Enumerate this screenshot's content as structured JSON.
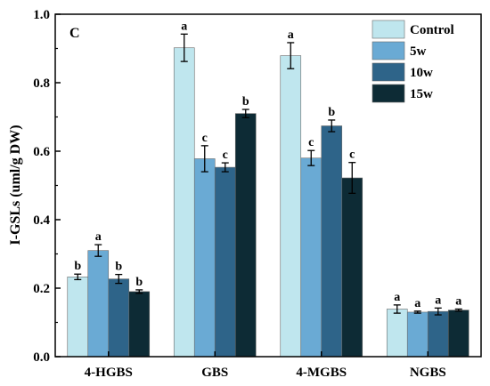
{
  "chart_data": {
    "type": "bar",
    "panel_label": "C",
    "ylabel": "I-GSLs (uml/g DW)",
    "xlabel": "",
    "ylim": [
      0,
      1.0
    ],
    "yticks": [
      "0.0",
      "0.2",
      "0.4",
      "0.6",
      "0.8",
      "1.0"
    ],
    "categories": [
      "4-HGBS",
      "GBS",
      "4-MGBS",
      "NGBS"
    ],
    "legend_position": "top-right",
    "series": [
      {
        "name": "Control",
        "color": "#bfe6ee",
        "values": [
          0.233,
          0.902,
          0.879,
          0.139
        ],
        "errors": [
          0.008,
          0.04,
          0.038,
          0.012
        ],
        "letters": [
          "b",
          "a",
          "a",
          "a"
        ]
      },
      {
        "name": "5w",
        "color": "#6aaad4",
        "values": [
          0.31,
          0.578,
          0.58,
          0.13
        ],
        "errors": [
          0.017,
          0.038,
          0.022,
          0.003
        ],
        "letters": [
          "a",
          "c",
          "c",
          "a"
        ]
      },
      {
        "name": "10w",
        "color": "#2e6489",
        "values": [
          0.227,
          0.553,
          0.674,
          0.132
        ],
        "errors": [
          0.013,
          0.013,
          0.017,
          0.01
        ],
        "letters": [
          "b",
          "c",
          "b",
          "a"
        ]
      },
      {
        "name": "15w",
        "color": "#0d2b35",
        "values": [
          0.19,
          0.71,
          0.522,
          0.136
        ],
        "errors": [
          0.005,
          0.012,
          0.045,
          0.003
        ],
        "letters": [
          "b",
          "b",
          "c",
          "a"
        ]
      }
    ]
  }
}
